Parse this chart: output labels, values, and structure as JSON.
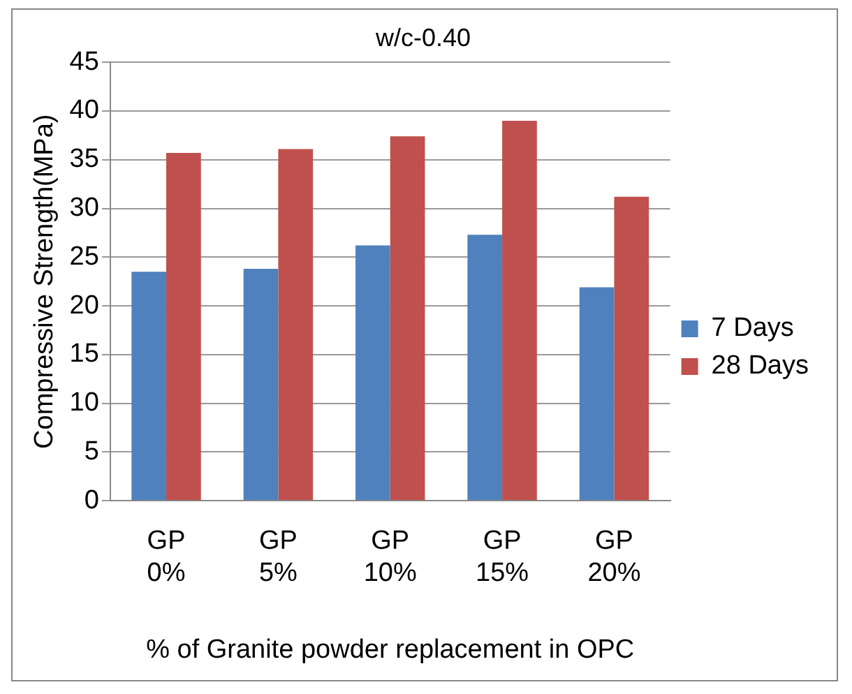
{
  "chart_data": {
    "type": "bar",
    "title": "w/c-0.40",
    "xlabel": "% of Granite powder replacement in OPC",
    "ylabel": "Compressive Strength(MPa)",
    "categories": [
      "GP 0%",
      "GP 5%",
      "GP 10%",
      "GP 15%",
      "GP 20%"
    ],
    "series": [
      {
        "name": "7 Days",
        "color": "#4f81bd",
        "values": [
          23.5,
          23.8,
          26.2,
          27.3,
          21.9
        ]
      },
      {
        "name": "28 Days",
        "color": "#c0504d",
        "values": [
          35.7,
          36.1,
          37.4,
          39.0,
          31.2
        ]
      }
    ],
    "ylim": [
      0,
      45
    ],
    "yticks": [
      0,
      5,
      10,
      15,
      20,
      25,
      30,
      35,
      40,
      45
    ],
    "grid": "y",
    "legend": "right"
  }
}
